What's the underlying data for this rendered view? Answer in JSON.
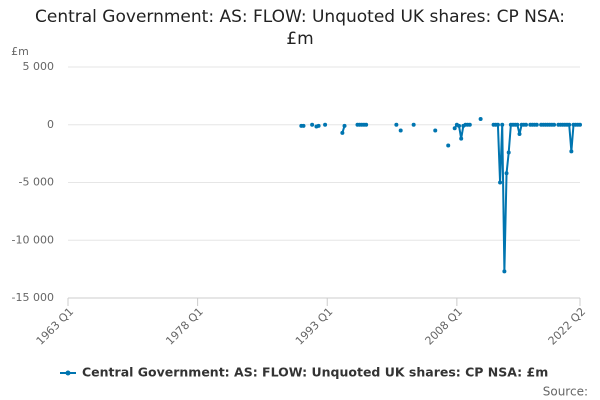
{
  "chart_data": {
    "type": "line",
    "title": "Central Government: AS: FLOW: Unquoted UK shares: CP NSA: £m",
    "y_unit": "£m",
    "source": "Source:",
    "x": [
      "1990 Q1",
      "1990 Q2",
      "1990 Q3",
      "1991 Q2",
      "1991 Q3",
      "1991 Q4",
      "1992 Q1",
      "1992 Q2",
      "1992 Q4",
      "1993 Q1",
      "1994 Q4",
      "1995 Q1",
      "1995 Q2",
      "1996 Q3",
      "1996 Q4",
      "1997 Q1",
      "1997 Q2",
      "1997 Q3",
      "1997 Q4",
      "2001 Q1",
      "2001 Q2",
      "2001 Q3",
      "2001 Q4",
      "2003 Q1",
      "2003 Q2",
      "2005 Q3",
      "2005 Q4",
      "2007 Q1",
      "2007 Q2",
      "2007 Q4",
      "2008 Q1",
      "2008 Q2",
      "2008 Q3",
      "2008 Q4",
      "2009 Q1",
      "2009 Q2",
      "2009 Q3",
      "2009 Q4",
      "2010 Q4",
      "2011 Q1",
      "2012 Q2",
      "2012 Q3",
      "2012 Q4",
      "2013 Q1",
      "2013 Q2",
      "2013 Q3",
      "2013 Q4",
      "2014 Q1",
      "2014 Q2",
      "2014 Q3",
      "2014 Q4",
      "2015 Q1",
      "2015 Q2",
      "2015 Q3",
      "2015 Q4",
      "2016 Q1",
      "2016 Q2",
      "2016 Q3",
      "2016 Q4",
      "2017 Q1",
      "2017 Q2",
      "2017 Q3",
      "2017 Q4",
      "2018 Q1",
      "2018 Q2",
      "2018 Q3",
      "2018 Q4",
      "2019 Q1",
      "2019 Q2",
      "2019 Q3",
      "2019 Q4",
      "2020 Q1",
      "2020 Q2",
      "2020 Q3",
      "2020 Q4",
      "2021 Q1",
      "2021 Q2",
      "2021 Q3",
      "2021 Q4",
      "2022 Q1",
      "2022 Q2"
    ],
    "series": [
      {
        "name": "Central Government: AS: FLOW: Unquoted UK shares: CP NSA: £m",
        "color": "#0075b0",
        "values": [
          -100,
          -100,
          null,
          0,
          null,
          -150,
          -100,
          null,
          0,
          null,
          -700,
          -100,
          null,
          0,
          0,
          0,
          0,
          0,
          null,
          0,
          null,
          -500,
          null,
          0,
          null,
          -500,
          null,
          -1800,
          null,
          -300,
          0,
          -100,
          -1200,
          -100,
          0,
          0,
          0,
          null,
          500,
          null,
          0,
          0,
          0,
          -5000,
          0,
          -12700,
          -4200,
          -2400,
          0,
          0,
          0,
          0,
          -800,
          0,
          0,
          0,
          null,
          0,
          0,
          0,
          0,
          null,
          0,
          0,
          0,
          0,
          0,
          0,
          0,
          null,
          0,
          0,
          0,
          0,
          0,
          0,
          -2300,
          0,
          0,
          0,
          0
        ]
      }
    ],
    "xlim": [
      "1963 Q1",
      "2022 Q2"
    ],
    "xticks": [
      "1963 Q1",
      "1978 Q1",
      "1993 Q1",
      "2008 Q1",
      "2022 Q2"
    ],
    "ylim": [
      -15000,
      5000
    ],
    "yticks": [
      {
        "value": -15000,
        "label": "-15 000"
      },
      {
        "value": -10000,
        "label": "-10 000"
      },
      {
        "value": -5000,
        "label": "-5 000"
      },
      {
        "value": 0,
        "label": "0"
      },
      {
        "value": 5000,
        "label": "5 000"
      }
    ],
    "grid": true
  }
}
